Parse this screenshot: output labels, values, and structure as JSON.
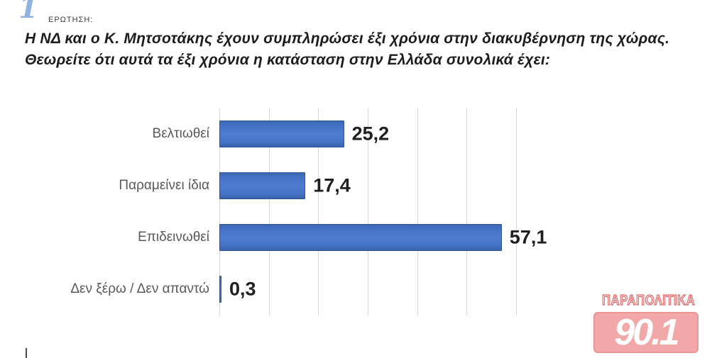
{
  "header": {
    "icon_glyph": "1",
    "kicker": "ΕΡΩΤΗΣΗ:",
    "question_line1": "Η ΝΔ και ο Κ. Μητσοτάκης  έχουν συμπληρώσει έξι χρόνια στην διακυβέρνηση της χώρας.",
    "question_line2": "Θεωρείτε ότι αυτά τα έξι χρόνια η κατάσταση στην Ελλάδα συνολικά έχει:"
  },
  "chart_data": {
    "type": "bar",
    "orientation": "horizontal",
    "title": "",
    "categories": [
      "Βελτιωθεί",
      "Παραμείνει ίδια",
      "Επιδεινωθεί",
      "Δεν ξέρω / Δεν απαντώ"
    ],
    "values": [
      25.2,
      17.4,
      57.1,
      0.3
    ],
    "value_labels": [
      "25,2",
      "17,4",
      "57,1",
      "0,3"
    ],
    "xlim": [
      0,
      60
    ],
    "gridline_step": 10,
    "grid": true,
    "legend": false,
    "colors": {
      "bar_fill": "#4472c4",
      "bar_border": "#2f5597",
      "gridline": "#d6d6d6",
      "category_label": "#595959",
      "value_label": "#1f1f1f"
    }
  },
  "logo": {
    "station_name": "ΠΑΡΑΠΟΛΙΤΙΚΑ",
    "frequency": "90.1",
    "colors": {
      "red": "#dd6a6a",
      "pink": "#f2a8a8",
      "digits": "#ffffff"
    }
  }
}
